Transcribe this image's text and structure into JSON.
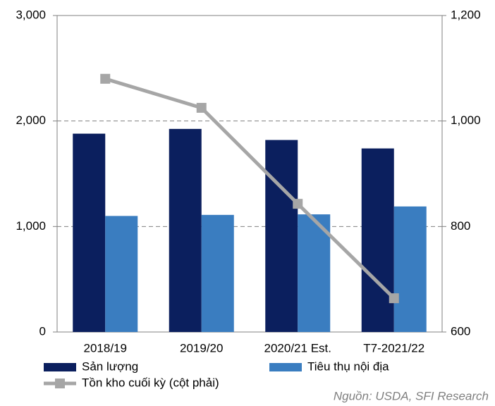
{
  "chart_data": {
    "type": "bar_line",
    "categories": [
      "2018/19",
      "2019/20",
      "2020/21 Est.",
      "T7-2021/22"
    ],
    "series": [
      {
        "name": "Sản lượng",
        "color": "#0b1f5e",
        "values": [
          1880,
          1925,
          1820,
          1740
        ]
      },
      {
        "name": "Tiêu thụ nội địa",
        "color": "#3a7dc0",
        "values": [
          1100,
          1110,
          1115,
          1190
        ]
      },
      {
        "name": "Tồn kho cuối kỳ (cột phải)",
        "color": "#a6a6a6",
        "axis": "y2",
        "values": [
          1080,
          1025,
          843,
          664
        ]
      }
    ],
    "ylim": [
      0,
      3000
    ],
    "yticks": [
      0,
      {
        "value": 1000,
        "label": "1,000"
      },
      {
        "value": 2000,
        "label": "2,000"
      },
      {
        "value": 3000,
        "label": "3,000"
      }
    ],
    "y2lim": [
      600,
      1200
    ],
    "y2ticks": [
      600,
      800,
      {
        "value": 1000,
        "label": "1,000"
      },
      {
        "value": 1200,
        "label": "1,200"
      }
    ],
    "grid": true,
    "legend": "bottom",
    "source": "Nguồn: USDA, SFI Research"
  }
}
